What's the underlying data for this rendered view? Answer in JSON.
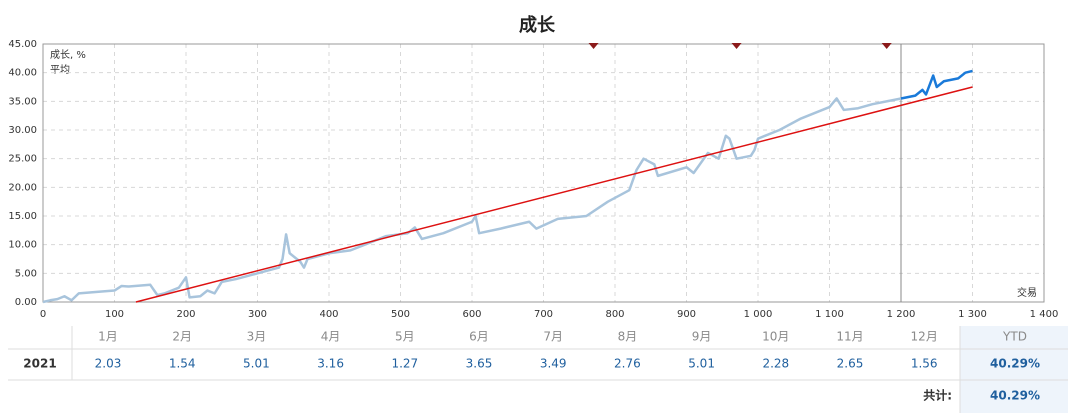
{
  "chart_data": {
    "type": "line",
    "title": "成长",
    "x_label": "交易",
    "series": [
      {
        "name": "成长, %",
        "color": "#1a7ad9",
        "x": [
          1200,
          1220,
          1230,
          1235,
          1245,
          1250,
          1260,
          1280,
          1290,
          1300
        ],
        "values": [
          35.5,
          36.0,
          37.0,
          36.2,
          39.5,
          37.5,
          38.5,
          39.0,
          40.0,
          40.3
        ]
      },
      {
        "color": "#a8c4dc",
        "x": [
          0,
          10,
          20,
          30,
          40,
          50,
          80,
          100,
          110,
          120,
          150,
          160,
          170,
          190,
          200,
          205,
          220,
          230,
          240,
          250,
          270,
          300,
          330,
          335,
          340,
          345,
          360,
          365,
          370,
          400,
          430,
          450,
          480,
          510,
          520,
          530,
          560,
          600,
          605,
          610,
          640,
          680,
          690,
          720,
          760,
          790,
          820,
          830,
          840,
          855,
          860,
          900,
          910,
          930,
          945,
          955,
          960,
          970,
          990,
          995,
          1000,
          1030,
          1060,
          1080,
          1100,
          1110,
          1120,
          1140,
          1160,
          1200
        ],
        "values": [
          0,
          0.3,
          0.5,
          1.0,
          0.3,
          1.5,
          1.8,
          2.0,
          2.8,
          2.7,
          3.0,
          1.2,
          1.5,
          2.5,
          4.3,
          0.8,
          1.0,
          2.0,
          1.5,
          3.5,
          4.0,
          5.0,
          6.0,
          7.5,
          11.8,
          8.5,
          7.0,
          6.0,
          7.5,
          8.5,
          9.0,
          10.0,
          11.5,
          12.0,
          13.0,
          11.0,
          12.0,
          14.0,
          15.0,
          12.0,
          12.8,
          14.0,
          12.8,
          14.5,
          15.0,
          17.5,
          19.5,
          23.0,
          25.0,
          24.0,
          22.0,
          23.5,
          22.5,
          26.0,
          25.0,
          29.0,
          28.5,
          25.0,
          25.5,
          26.5,
          28.5,
          30.0,
          32.0,
          33.0,
          34.0,
          35.5,
          33.5,
          33.8,
          34.5,
          35.5
        ]
      },
      {
        "name": "平均",
        "color": "#dd1111",
        "x": [
          130,
          1300
        ],
        "values": [
          0,
          37.5
        ]
      }
    ],
    "markers": {
      "x": [
        770,
        970,
        1180
      ],
      "color": "#8b1a1a"
    },
    "divider_x": 1200,
    "xlim": [
      0,
      1400
    ],
    "xticks": [
      0,
      100,
      200,
      300,
      400,
      500,
      600,
      700,
      800,
      900,
      {
        "value": 1000,
        "label": "1 000"
      },
      {
        "value": 1100,
        "label": "1 100"
      },
      {
        "value": 1200,
        "label": "1 200"
      },
      {
        "value": 1300,
        "label": "1 300"
      },
      {
        "value": 1400,
        "label": "1 400"
      }
    ],
    "ylim": [
      0,
      45
    ],
    "yticks": [
      {
        "value": 0,
        "label": "0.00"
      },
      {
        "value": 5,
        "label": "5.00"
      },
      {
        "value": 10,
        "label": "10.00"
      },
      {
        "value": 15,
        "label": "15.00"
      },
      {
        "value": 20,
        "label": "20.00"
      },
      {
        "value": 25,
        "label": "25.00"
      },
      {
        "value": 30,
        "label": "30.00"
      },
      {
        "value": 35,
        "label": "35.00"
      },
      {
        "value": 40,
        "label": "40.00"
      },
      {
        "value": 45,
        "label": "45.00"
      }
    ],
    "grid": true
  },
  "table": {
    "header": [
      "1月",
      "2月",
      "3月",
      "4月",
      "5月",
      "6月",
      "7月",
      "8月",
      "9月",
      "10月",
      "11月",
      "12月",
      "YTD"
    ],
    "rows": [
      [
        "2021",
        "2.03",
        "1.54",
        "5.01",
        "3.16",
        "1.27",
        "3.65",
        "3.49",
        "2.76",
        "5.01",
        "2.28",
        "2.65",
        "1.56",
        "40.29%"
      ]
    ],
    "total_label": "共计:",
    "total": "40.29%"
  }
}
